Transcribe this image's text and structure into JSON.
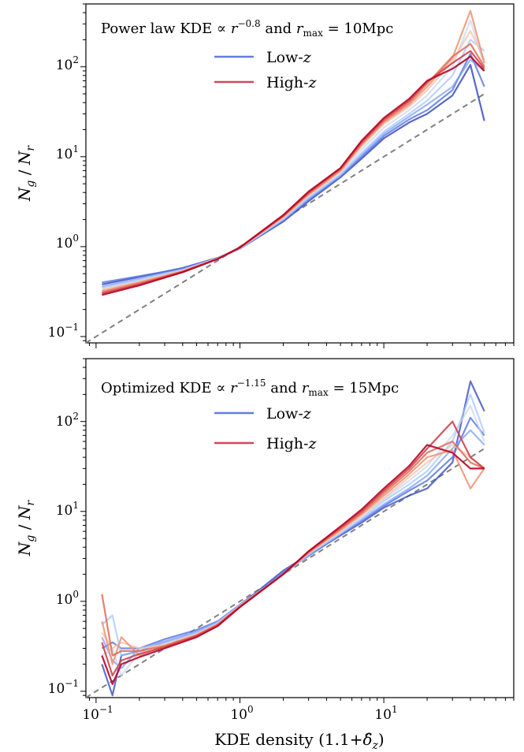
{
  "chart_data": [
    {
      "type": "line",
      "title": "Power law KDE ∝ r^−0.8 and r_max = 10Mpc",
      "title_parts": {
        "prefix": "Power law KDE ∝ ",
        "r": "r",
        "exp": "−0.8",
        "mid": " and ",
        "rmax": "r",
        "rmax_sub": "max",
        "suffix": " = 10Mpc"
      },
      "xlabel": "",
      "ylabel": "N_g / N_r",
      "xscale": "log",
      "yscale": "log",
      "xlim": [
        0.085,
        80
      ],
      "ylim": [
        0.085,
        500
      ],
      "yticks": [
        0.1,
        1,
        10,
        100
      ],
      "ytick_labels": [
        {
          "base": "10",
          "exp": "−1"
        },
        {
          "base": "10",
          "exp": "0"
        },
        {
          "base": "10",
          "exp": "1"
        },
        {
          "base": "10",
          "exp": "2"
        }
      ],
      "legend": {
        "position": "top-center",
        "entries": [
          {
            "label": "Low-",
            "italic": "z",
            "color": "#4a67d6"
          },
          {
            "label": "High-",
            "italic": "z",
            "color": "#c8283c"
          }
        ]
      },
      "reference_line": {
        "style": "dashed",
        "color": "#808080",
        "points": [
          [
            0.085,
            0.085
          ],
          [
            50,
            50
          ]
        ]
      },
      "x": [
        0.11,
        0.2,
        0.4,
        0.7,
        1.0,
        2.0,
        3.0,
        5.0,
        7.0,
        10,
        15,
        20,
        30,
        40,
        50
      ],
      "series": [
        {
          "values": [
            0.38,
            0.46,
            0.58,
            0.75,
            0.95,
            1.9,
            3.2,
            5.9,
            9.5,
            16,
            24,
            30,
            48,
            105,
            25
          ],
          "color": "#3b4cc0",
          "opacity": 0.85
        },
        {
          "values": [
            0.4,
            0.47,
            0.57,
            0.74,
            0.95,
            1.95,
            3.3,
            6.0,
            10,
            17,
            26,
            33,
            55,
            140,
            60
          ],
          "color": "#5572df",
          "opacity": 0.8
        },
        {
          "values": [
            0.36,
            0.44,
            0.56,
            0.74,
            0.95,
            2.0,
            3.4,
            6.2,
            10.5,
            18,
            28,
            38,
            60,
            120,
            90
          ],
          "color": "#7b9ff9",
          "opacity": 0.75
        },
        {
          "values": [
            0.35,
            0.43,
            0.55,
            0.74,
            0.96,
            2.0,
            3.5,
            6.3,
            11,
            19,
            30,
            42,
            80,
            200,
            150
          ],
          "color": "#a3c2fe",
          "opacity": 0.7
        },
        {
          "values": [
            0.34,
            0.42,
            0.55,
            0.74,
            0.96,
            2.05,
            3.6,
            6.5,
            12,
            21,
            33,
            48,
            100,
            330,
            100
          ],
          "color": "#c5d6f2",
          "opacity": 0.7
        },
        {
          "values": [
            0.33,
            0.41,
            0.54,
            0.74,
            0.97,
            2.1,
            3.7,
            6.8,
            13,
            23,
            36,
            55,
            115,
            250,
            120
          ],
          "color": "#f5c4ac",
          "opacity": 0.8
        },
        {
          "values": [
            0.32,
            0.4,
            0.53,
            0.73,
            0.97,
            2.15,
            3.8,
            7.0,
            13.5,
            24,
            38,
            60,
            125,
            420,
            110
          ],
          "color": "#f29072",
          "opacity": 0.85
        },
        {
          "values": [
            0.31,
            0.39,
            0.53,
            0.73,
            0.97,
            2.2,
            3.9,
            7.2,
            14,
            25,
            40,
            65,
            130,
            180,
            100
          ],
          "color": "#e26952",
          "opacity": 0.85
        },
        {
          "values": [
            0.3,
            0.38,
            0.52,
            0.73,
            0.98,
            2.2,
            4.0,
            7.4,
            14.5,
            26,
            42,
            68,
            110,
            150,
            95
          ],
          "color": "#d0414a",
          "opacity": 0.9
        },
        {
          "values": [
            0.29,
            0.37,
            0.52,
            0.73,
            0.98,
            2.25,
            4.1,
            7.5,
            15,
            27,
            44,
            70,
            95,
            130,
            90
          ],
          "color": "#b40426",
          "opacity": 0.9
        }
      ]
    },
    {
      "type": "line",
      "title": "Optimized KDE ∝ r^−1.15 and r_max = 15Mpc",
      "title_parts": {
        "prefix": "Optimized KDE ∝ ",
        "r": "r",
        "exp": "−1.15",
        "mid": " and ",
        "rmax": "r",
        "rmax_sub": "max",
        "suffix": " = 15Mpc"
      },
      "xlabel": "KDE density (1.1+δ̂_z)",
      "xlabel_parts": {
        "prefix": "KDE density (1.1+",
        "delta": "δ̂",
        "sub": "z",
        "suffix": ")"
      },
      "ylabel": "N_g / N_r",
      "xscale": "log",
      "yscale": "log",
      "xlim": [
        0.085,
        80
      ],
      "ylim": [
        0.085,
        500
      ],
      "xticks": [
        0.1,
        1,
        10
      ],
      "xtick_labels": [
        {
          "base": "10",
          "exp": "−1"
        },
        {
          "base": "10",
          "exp": "0"
        },
        {
          "base": "10",
          "exp": "1"
        }
      ],
      "yticks": [
        0.1,
        1,
        10,
        100
      ],
      "ytick_labels": [
        {
          "base": "10",
          "exp": "−1"
        },
        {
          "base": "10",
          "exp": "0"
        },
        {
          "base": "10",
          "exp": "1"
        },
        {
          "base": "10",
          "exp": "2"
        }
      ],
      "legend": {
        "position": "top-center",
        "entries": [
          {
            "label": "Low-",
            "italic": "z",
            "color": "#4a67d6"
          },
          {
            "label": "High-",
            "italic": "z",
            "color": "#c8283c"
          }
        ]
      },
      "reference_line": {
        "style": "dashed",
        "color": "#808080",
        "points": [
          [
            0.085,
            0.085
          ],
          [
            50,
            50
          ]
        ]
      },
      "x": [
        0.11,
        0.13,
        0.15,
        0.2,
        0.3,
        0.5,
        0.7,
        1.0,
        2.0,
        3.0,
        5.0,
        7.0,
        10,
        15,
        20,
        30,
        40,
        50
      ],
      "series": [
        {
          "values": [
            0.2,
            0.09,
            0.25,
            0.28,
            0.35,
            0.45,
            0.58,
            0.9,
            2.2,
            3.3,
            5.4,
            7.5,
            11,
            15,
            18,
            35,
            280,
            130
          ],
          "color": "#3b4cc0",
          "opacity": 0.8
        },
        {
          "values": [
            0.3,
            0.35,
            0.3,
            0.3,
            0.38,
            0.48,
            0.6,
            0.92,
            2.1,
            3.2,
            5.5,
            7.8,
            11.5,
            17,
            22,
            40,
            110,
            70
          ],
          "color": "#5572df",
          "opacity": 0.8
        },
        {
          "values": [
            0.4,
            0.22,
            0.18,
            0.3,
            0.36,
            0.46,
            0.59,
            0.9,
            2.0,
            3.3,
            5.6,
            8.0,
            12,
            18,
            25,
            50,
            80,
            55
          ],
          "color": "#7b9ff9",
          "opacity": 0.75
        },
        {
          "values": [
            0.55,
            0.7,
            0.25,
            0.28,
            0.35,
            0.45,
            0.58,
            0.9,
            2.0,
            3.3,
            5.7,
            8.3,
            13,
            20,
            28,
            60,
            200,
            75
          ],
          "color": "#a3c2fe",
          "opacity": 0.7
        },
        {
          "values": [
            0.25,
            0.3,
            0.15,
            0.27,
            0.34,
            0.44,
            0.57,
            0.9,
            2.0,
            3.4,
            5.8,
            8.6,
            13.5,
            22,
            32,
            70,
            150,
            60
          ],
          "color": "#c5d6f2",
          "opacity": 0.7
        },
        {
          "values": [
            0.45,
            0.3,
            0.35,
            0.3,
            0.33,
            0.43,
            0.56,
            0.89,
            2.0,
            3.4,
            6.0,
            9.0,
            14,
            24,
            35,
            55,
            40,
            30
          ],
          "color": "#f5c4ac",
          "opacity": 0.8
        },
        {
          "values": [
            0.6,
            0.2,
            0.4,
            0.25,
            0.32,
            0.42,
            0.55,
            0.88,
            2.0,
            3.5,
            6.2,
            9.3,
            15,
            26,
            40,
            48,
            18,
            30
          ],
          "color": "#f29072",
          "opacity": 0.85
        },
        {
          "values": [
            1.2,
            0.25,
            0.28,
            0.28,
            0.32,
            0.42,
            0.55,
            0.88,
            2.0,
            3.5,
            6.4,
            9.6,
            16,
            28,
            45,
            60,
            35,
            30
          ],
          "color": "#e26952",
          "opacity": 0.85
        },
        {
          "values": [
            0.35,
            0.15,
            0.22,
            0.26,
            0.31,
            0.41,
            0.54,
            0.87,
            2.0,
            3.6,
            6.6,
            10,
            17,
            30,
            50,
            100,
            40,
            30
          ],
          "color": "#d0414a",
          "opacity": 0.9
        },
        {
          "values": [
            0.25,
            0.12,
            0.2,
            0.24,
            0.3,
            0.4,
            0.53,
            0.86,
            2.0,
            3.6,
            6.8,
            10.5,
            18,
            32,
            55,
            45,
            30,
            30
          ],
          "color": "#b40426",
          "opacity": 0.9
        }
      ]
    }
  ]
}
